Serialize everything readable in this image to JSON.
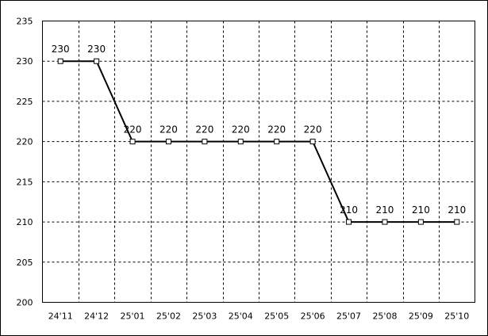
{
  "chart_data": {
    "type": "line",
    "categories": [
      "24'11",
      "24'12",
      "25'01",
      "25'02",
      "25'03",
      "25'04",
      "25'05",
      "25'06",
      "25'07",
      "25'08",
      "25'09",
      "25'10"
    ],
    "values": [
      230,
      230,
      220,
      220,
      220,
      220,
      220,
      220,
      210,
      210,
      210,
      210
    ],
    "color": "#000000",
    "ylim": [
      200,
      235
    ],
    "yticks": [
      200,
      205,
      210,
      215,
      220,
      225,
      230,
      235
    ],
    "grid": true
  }
}
